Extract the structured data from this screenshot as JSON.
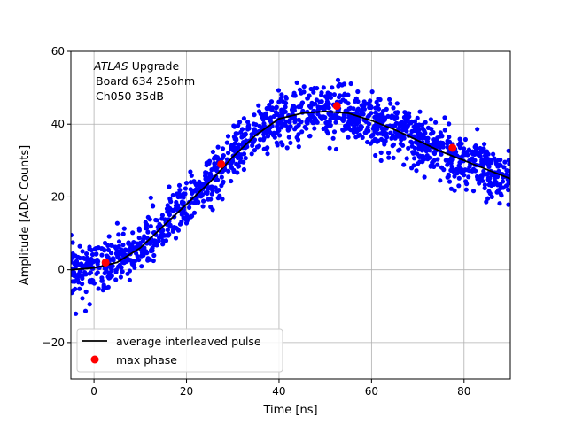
{
  "chart_data": {
    "type": "scatter",
    "xlabel": "Time [ns]",
    "ylabel": "Amplitude [ADC Counts]",
    "xlim": [
      -5,
      90
    ],
    "ylim": [
      -30,
      60
    ],
    "xticks": [
      0,
      20,
      40,
      60,
      80
    ],
    "yticks": [
      -20,
      0,
      20,
      40,
      60
    ],
    "grid": true,
    "legend_position": "lower-left",
    "annotation": {
      "line1_italic": "ATLAS",
      "line1_rest": " Upgrade",
      "line2": "Board 634 25ohm",
      "line3": "Ch050 35dB"
    },
    "series": [
      {
        "name": "average interleaved pulse",
        "style": "line",
        "color": "#000000",
        "x": [
          -5,
          0,
          5,
          10,
          15,
          20,
          25,
          30,
          35,
          40,
          45,
          50,
          55,
          60,
          65,
          70,
          75,
          80,
          85,
          90
        ],
        "y": [
          0,
          0.5,
          2,
          6,
          12,
          18,
          24,
          31,
          37,
          41.5,
          43,
          43.5,
          43,
          41,
          38.5,
          35.5,
          32.5,
          30,
          27.5,
          25
        ]
      },
      {
        "name": "max phase",
        "style": "marker",
        "color": "#ff0000",
        "x": [
          2.5,
          27.5,
          52.5,
          77.5
        ],
        "y": [
          2,
          29,
          45,
          33.5
        ]
      }
    ],
    "scatter_points": {
      "color": "#0000ff",
      "description": "noisy samples scattered around average pulse",
      "noise_sigma": 3.5
    }
  }
}
